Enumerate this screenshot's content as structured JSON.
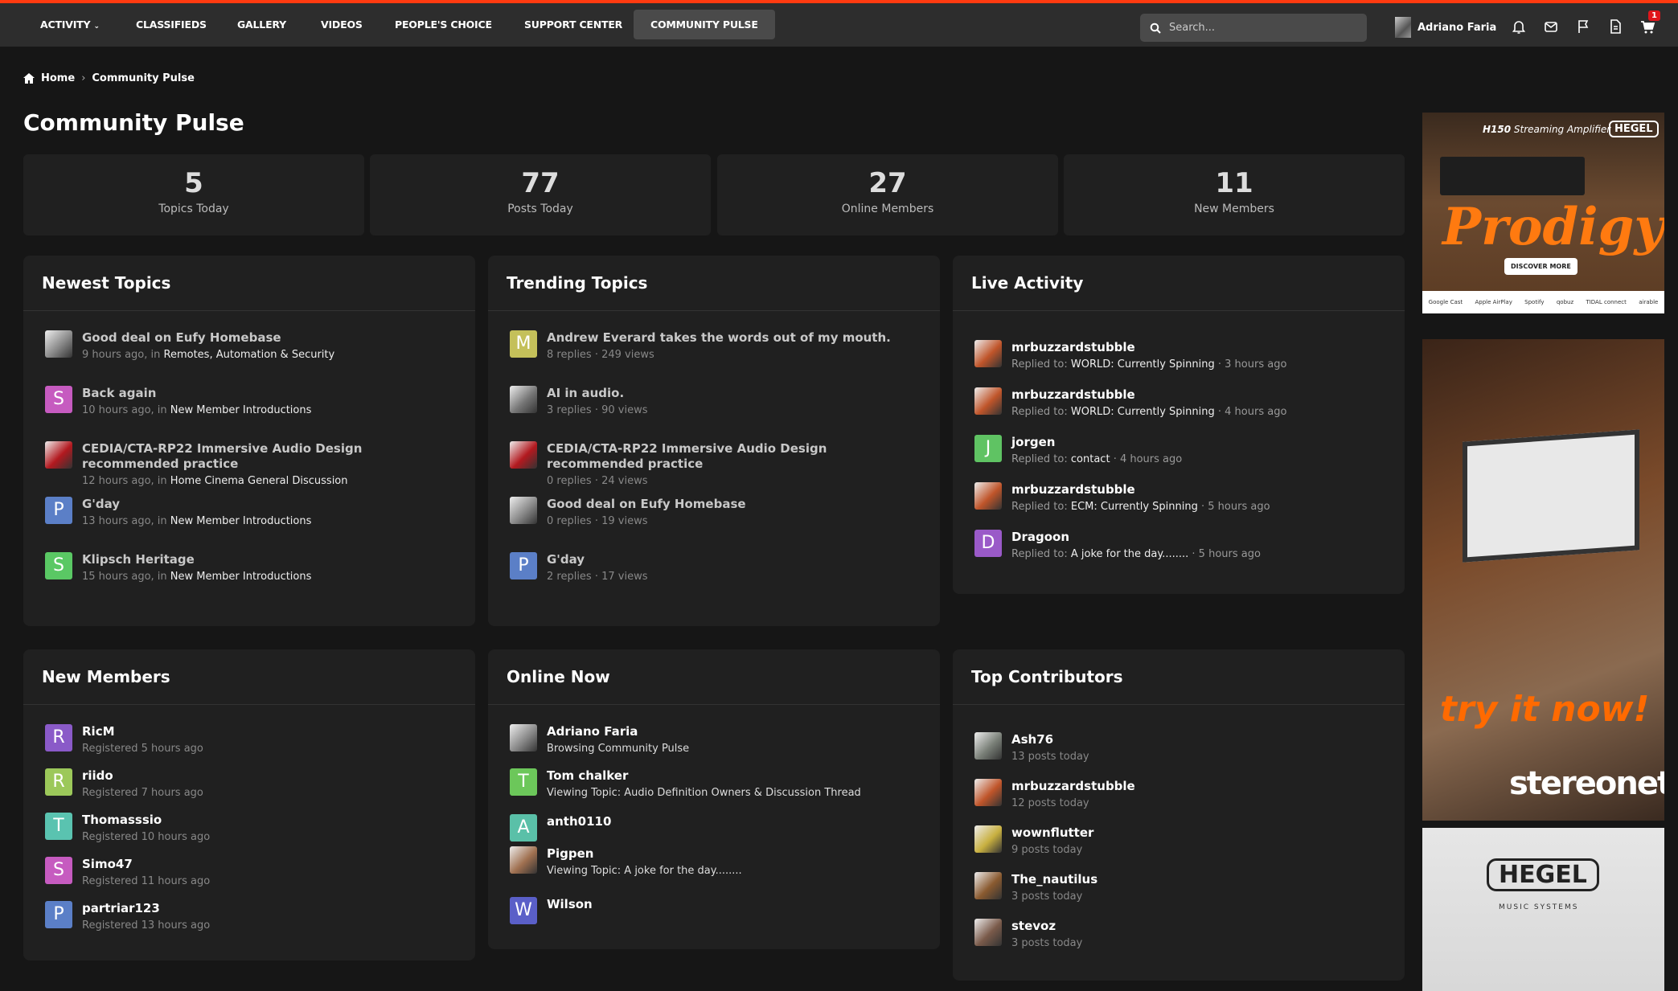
{
  "nav": {
    "items": [
      {
        "label": "Activity",
        "chevron": true
      },
      {
        "label": "Classifieds"
      },
      {
        "label": "Gallery"
      },
      {
        "label": "Videos"
      },
      {
        "label": "People's Choice"
      },
      {
        "label": "Support Center"
      },
      {
        "label": "Community Pulse",
        "active": true
      }
    ],
    "search_placeholder": "Search...",
    "user": "Adriano Faria",
    "cart_badge": "1",
    "icons": [
      "bell-icon",
      "envelope-icon",
      "flag-icon",
      "document-icon",
      "cart-icon"
    ],
    "accent": "#ff3a10"
  },
  "breadcrumb": {
    "home": "Home",
    "current": "Community Pulse"
  },
  "page_title": "Community Pulse",
  "stats": [
    {
      "value": "5",
      "label": "Topics Today"
    },
    {
      "value": "77",
      "label": "Posts Today"
    },
    {
      "value": "27",
      "label": "Online Members"
    },
    {
      "value": "11",
      "label": "New Members"
    }
  ],
  "newest_topics": {
    "title": "Newest Topics",
    "items": [
      {
        "avatar": "img",
        "color": "#8a8a8a",
        "title": "Good deal on Eufy Homebase",
        "time": "9 hours ago, in",
        "forum": "Remotes, Automation & Security"
      },
      {
        "avatar": "S",
        "color": "#c65bc0",
        "title": "Back again",
        "time": "10 hours ago, in",
        "forum": "New Member Introductions"
      },
      {
        "avatar": "img",
        "color": "#b3191f",
        "title": "CEDIA/CTA-RP22 Immersive Audio Design recommended practice",
        "time": "12 hours ago, in",
        "forum": "Home Cinema General Discussion"
      },
      {
        "avatar": "P",
        "color": "#5b7fc7",
        "title": "G'day",
        "time": "13 hours ago, in",
        "forum": "New Member Introductions"
      },
      {
        "avatar": "S",
        "color": "#5ac864",
        "title": "Klipsch Heritage",
        "time": "15 hours ago, in",
        "forum": "New Member Introductions"
      }
    ]
  },
  "trending_topics": {
    "title": "Trending Topics",
    "items": [
      {
        "avatar": "M",
        "color": "#c4c05a",
        "title": "Andrew Everard takes the words out of my mouth.",
        "meta": "8 replies · 249 views"
      },
      {
        "avatar": "img",
        "color": "#777777",
        "title": "AI in audio.",
        "meta": "3 replies · 90 views"
      },
      {
        "avatar": "img",
        "color": "#b3191f",
        "title": "CEDIA/CTA-RP22 Immersive Audio Design recommended practice",
        "meta": "0 replies · 24 views"
      },
      {
        "avatar": "img",
        "color": "#8a8a8a",
        "title": "Good deal on Eufy Homebase",
        "meta": "0 replies · 19 views"
      },
      {
        "avatar": "P",
        "color": "#5b7fc7",
        "title": "G'day",
        "meta": "2 replies · 17 views"
      }
    ]
  },
  "live_activity": {
    "title": "Live Activity",
    "items": [
      {
        "avatar": "img",
        "color": "#c0552a",
        "user": "mrbuzzardstubble",
        "prefix": "Replied to:",
        "topic": "WORLD: Currently Spinning",
        "time": "· 3 hours ago"
      },
      {
        "avatar": "img",
        "color": "#c0552a",
        "user": "mrbuzzardstubble",
        "prefix": "Replied to:",
        "topic": "WORLD: Currently Spinning",
        "time": "· 4 hours ago"
      },
      {
        "avatar": "J",
        "color": "#5fc363",
        "user": "jorgen",
        "prefix": "Replied to:",
        "topic": "contact",
        "time": "· 4 hours ago"
      },
      {
        "avatar": "img",
        "color": "#c0552a",
        "user": "mrbuzzardstubble",
        "prefix": "Replied to:",
        "topic": "ECM: Currently Spinning",
        "time": "· 5 hours ago"
      },
      {
        "avatar": "D",
        "color": "#9a5ac8",
        "user": "Dragoon",
        "prefix": "Replied to:",
        "topic": "A joke for the day........",
        "time": "· 5 hours ago"
      }
    ]
  },
  "new_members": {
    "title": "New Members",
    "items": [
      {
        "avatar": "R",
        "color": "#8a5ac8",
        "user": "RicM",
        "meta": "Registered 5 hours ago"
      },
      {
        "avatar": "R",
        "color": "#9cc85a",
        "user": "riido",
        "meta": "Registered 7 hours ago"
      },
      {
        "avatar": "T",
        "color": "#5ac3b0",
        "user": "Thomasssio",
        "meta": "Registered 10 hours ago"
      },
      {
        "avatar": "S",
        "color": "#c65bc0",
        "user": "Simo47",
        "meta": "Registered 11 hours ago"
      },
      {
        "avatar": "P",
        "color": "#5b7fc7",
        "user": "partriar123",
        "meta": "Registered 13 hours ago"
      }
    ]
  },
  "online_now": {
    "title": "Online Now",
    "items": [
      {
        "avatar": "img",
        "color": "#8a8a8a",
        "user": "Adriano Faria",
        "meta": "Browsing Community Pulse"
      },
      {
        "avatar": "T",
        "color": "#6cc75a",
        "user": "Tom chalker",
        "meta": "Viewing Topic: Audio Definition Owners & Discussion Thread"
      },
      {
        "avatar": "A",
        "color": "#5ac0a8",
        "user": "anth0110",
        "meta": ""
      },
      {
        "avatar": "img",
        "color": "#a07050",
        "user": "Pigpen",
        "meta": "Viewing Topic: A joke for the day........"
      },
      {
        "avatar": "W",
        "color": "#5a5fc8",
        "user": "Wilson",
        "meta": ""
      }
    ]
  },
  "top_contributors": {
    "title": "Top Contributors",
    "items": [
      {
        "avatar": "img",
        "color": "#7a8078",
        "user": "Ash76",
        "meta": "13 posts today"
      },
      {
        "avatar": "img",
        "color": "#c0552a",
        "user": "mrbuzzardstubble",
        "meta": "12 posts today"
      },
      {
        "avatar": "img",
        "color": "#c8b040",
        "user": "wownflutter",
        "meta": "9 posts today"
      },
      {
        "avatar": "img",
        "color": "#8a5a30",
        "user": "The_nautilus",
        "meta": "3 posts today"
      },
      {
        "avatar": "img",
        "color": "#7a5a4a",
        "user": "stevoz",
        "meta": "3 posts today"
      }
    ]
  },
  "ads": {
    "hegel_top": {
      "model": "H150",
      "subtitle": "Streaming Amplifier",
      "brand": "HEGEL",
      "tagline": "Prodigy",
      "cta": "DISCOVER MORE",
      "partners": [
        "Google Cast",
        "Apple AirPlay",
        "Spotify",
        "qobuz",
        "TIDAL connect",
        "airable"
      ]
    },
    "stereonet": {
      "slogan": "try it now!",
      "brand": "stereonet"
    },
    "hegel_bottom": {
      "brand": "HEGEL",
      "sub": "MUSIC SYSTEMS"
    }
  }
}
